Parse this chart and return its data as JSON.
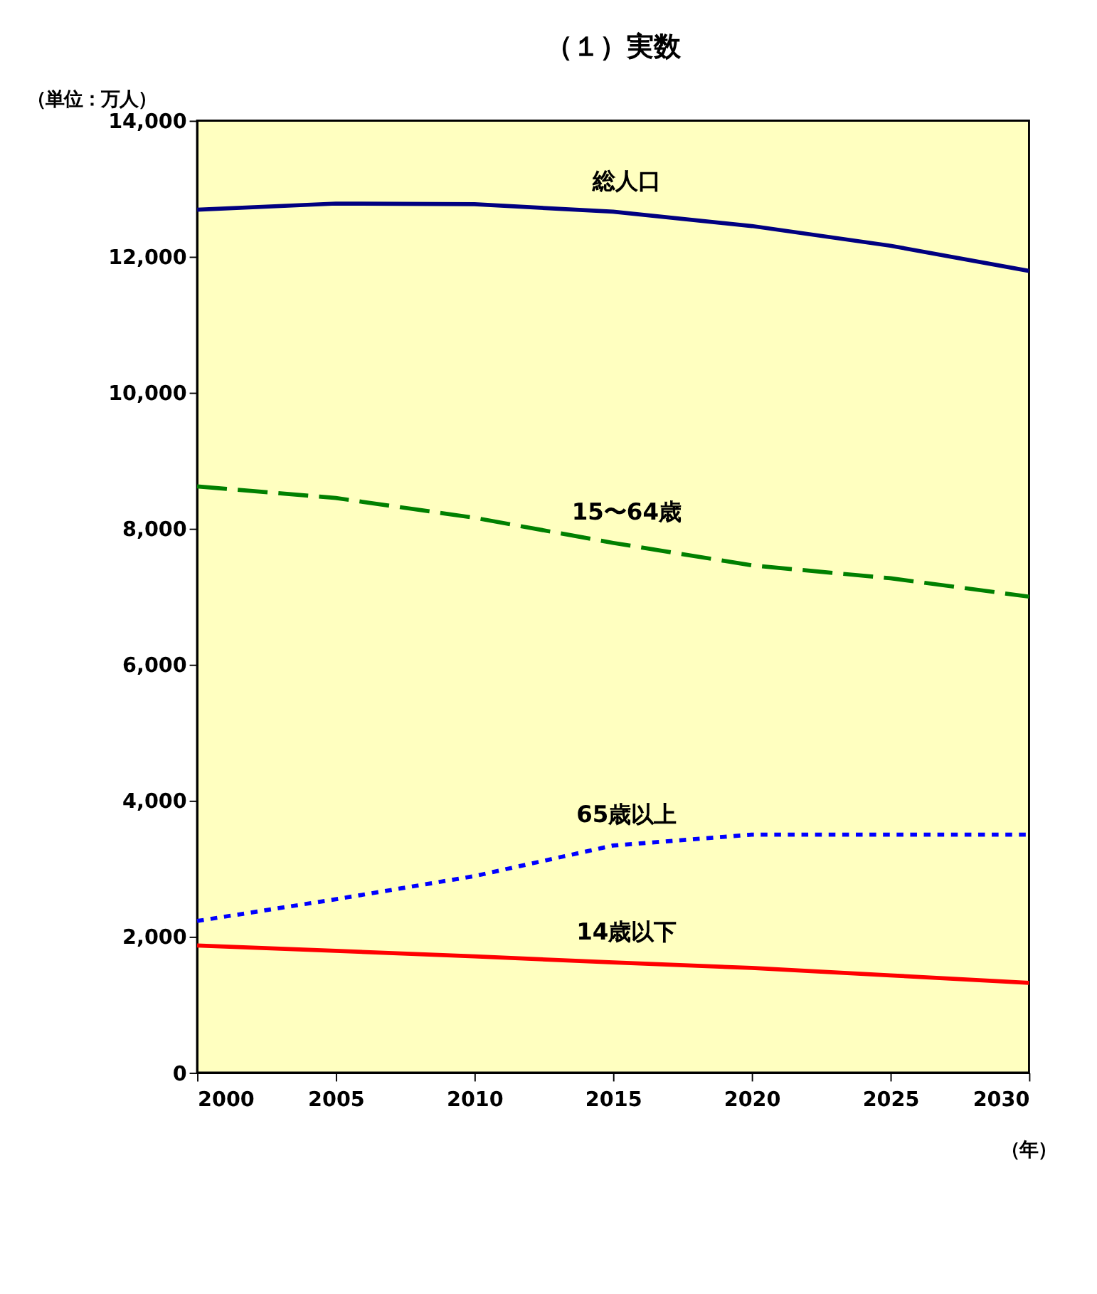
{
  "chart_data": {
    "type": "line",
    "title": "（１）実数",
    "ylabel": "（単位：万人）",
    "xlabel": "（年）",
    "x": [
      2000,
      2005,
      2010,
      2015,
      2020,
      2025,
      2030
    ],
    "xlim": [
      2000,
      2030
    ],
    "xticks": [
      2000,
      2005,
      2010,
      2015,
      2020,
      2025,
      2030
    ],
    "ylim": [
      0,
      14000
    ],
    "yticks": [
      0,
      {
        "value": 2000,
        "label": "2,000"
      },
      {
        "value": 4000,
        "label": "4,000"
      },
      {
        "value": 6000,
        "label": "6,000"
      },
      {
        "value": 8000,
        "label": "8,000"
      },
      {
        "value": 10000,
        "label": "10,000"
      },
      {
        "value": 12000,
        "label": "12,000"
      },
      {
        "value": 14000,
        "label": "14,000"
      }
    ],
    "grid": false,
    "marker": "none",
    "series": [
      {
        "name": "総人口",
        "color": "#000080",
        "line_style": "solid",
        "values": [
          12690,
          12780,
          12770,
          12660,
          12450,
          12160,
          11790
        ]
      },
      {
        "name": "15〜64歳",
        "color": "#008000",
        "line_style": "dashed",
        "values": [
          8620,
          8450,
          8160,
          7790,
          7460,
          7270,
          7000
        ]
      },
      {
        "name": "65歳以上",
        "color": "#0000ff",
        "line_style": "dotted",
        "values": [
          2230,
          2550,
          2890,
          3340,
          3500,
          3500,
          3500
        ]
      },
      {
        "name": "14歳以下",
        "color": "#ff0000",
        "line_style": "solid",
        "values": [
          1870,
          1790,
          1710,
          1620,
          1540,
          1430,
          1320
        ]
      }
    ]
  }
}
